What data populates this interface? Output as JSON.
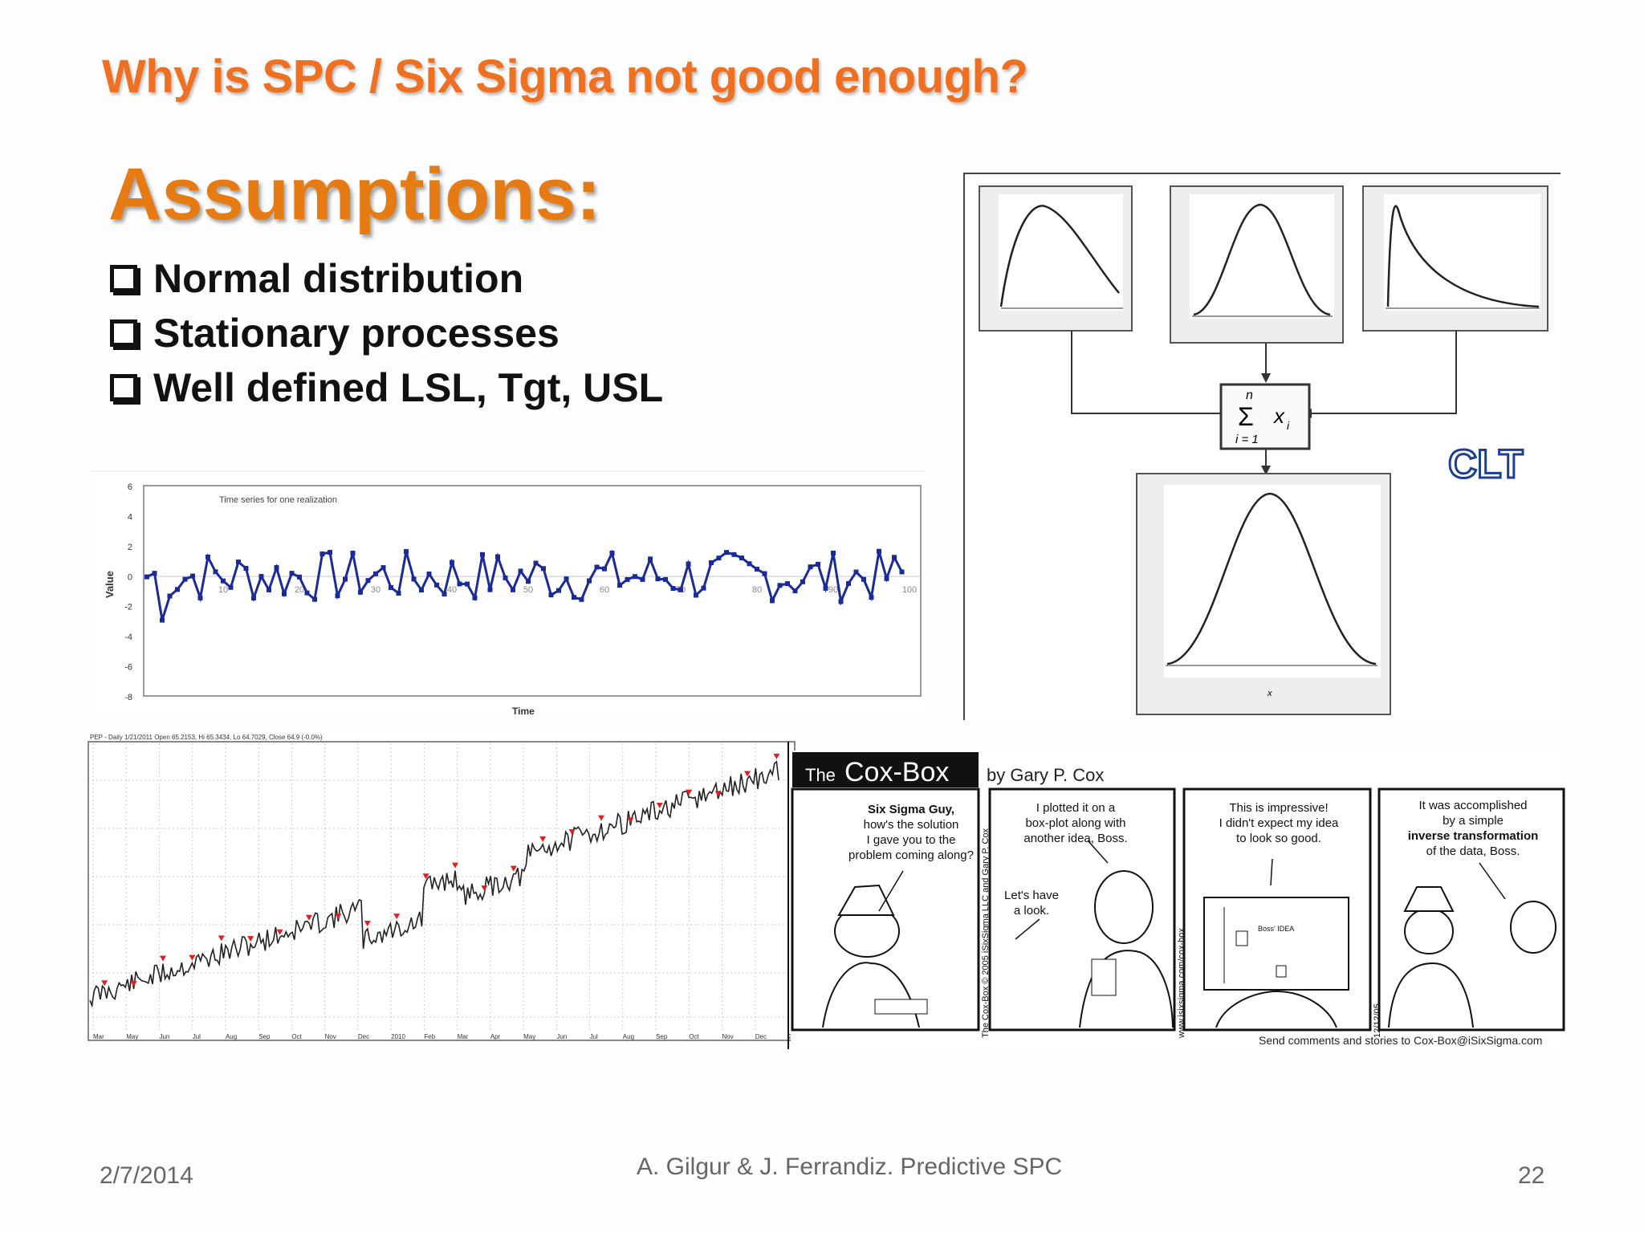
{
  "slide": {
    "title": "Why is SPC / Six Sigma not good enough?",
    "heading": "Assumptions:",
    "bullets": [
      "Normal distribution",
      "Stationary processes",
      "Well defined LSL, Tgt, USL"
    ]
  },
  "time_series": {
    "inner_title": "Time series for one realization",
    "ylabel": "Value",
    "xlabel": "Time",
    "yticks": [
      "6",
      "4",
      "2",
      "0",
      "-2",
      "-4",
      "-6",
      "-8"
    ],
    "xticks": [
      "10",
      "20",
      "30",
      "40",
      "50",
      "60",
      "70",
      "80",
      "90",
      "100"
    ]
  },
  "clt": {
    "label": "CLT",
    "sum_top": "n",
    "sum_sign": "Σ",
    "sum_var": "x",
    "sum_sub": "i",
    "sum_bottom": "i = 1",
    "axis_var": "x"
  },
  "stock": {
    "header": "PEP - Daily 1/21/2011 Open 65.2153, Hi 65.3434, Lo 64.7029, Close 64.9 (-0.0%)",
    "months": [
      "Mar",
      "May",
      "Jun",
      "Jul",
      "Aug",
      "Sep",
      "Oct",
      "Nov",
      "Dec",
      "2010",
      "Feb",
      "Mar",
      "Apr",
      "May",
      "Jun",
      "Jul",
      "Aug",
      "Sep",
      "Oct",
      "Nov",
      "Dec",
      "201"
    ]
  },
  "comic": {
    "logo_the": "The",
    "logo_name": "Cox-Box",
    "byline": "by Gary P. Cox",
    "side_credit": "The Cox-Box © 2005 iSixSigma LLC and Gary P. Cox",
    "side_url": "www.isixsigma.com/cox-box",
    "date": "12/12/05",
    "panel1": [
      "Six Sigma Guy,",
      "how's the solution",
      "I gave you to the",
      "problem coming along?"
    ],
    "panel2_top": [
      "I plotted it on a",
      "box-plot along with",
      "another idea, Boss."
    ],
    "panel2_bottom": [
      "Let's have",
      "a look."
    ],
    "panel3": [
      "This is impressive!",
      "I didn't expect my idea",
      "to look so good."
    ],
    "panel3_screen": "Boss' IDEA",
    "panel4": [
      "It was accomplished",
      "by a simple",
      "inverse transformation",
      "of the data, Boss."
    ],
    "footer": "Send comments and stories to Cox-Box@iSixSigma.com"
  },
  "footer": {
    "date": "2/7/2014",
    "authors": "A. Gilgur & J. Ferrandiz.  Predictive SPC",
    "page": "22"
  }
}
